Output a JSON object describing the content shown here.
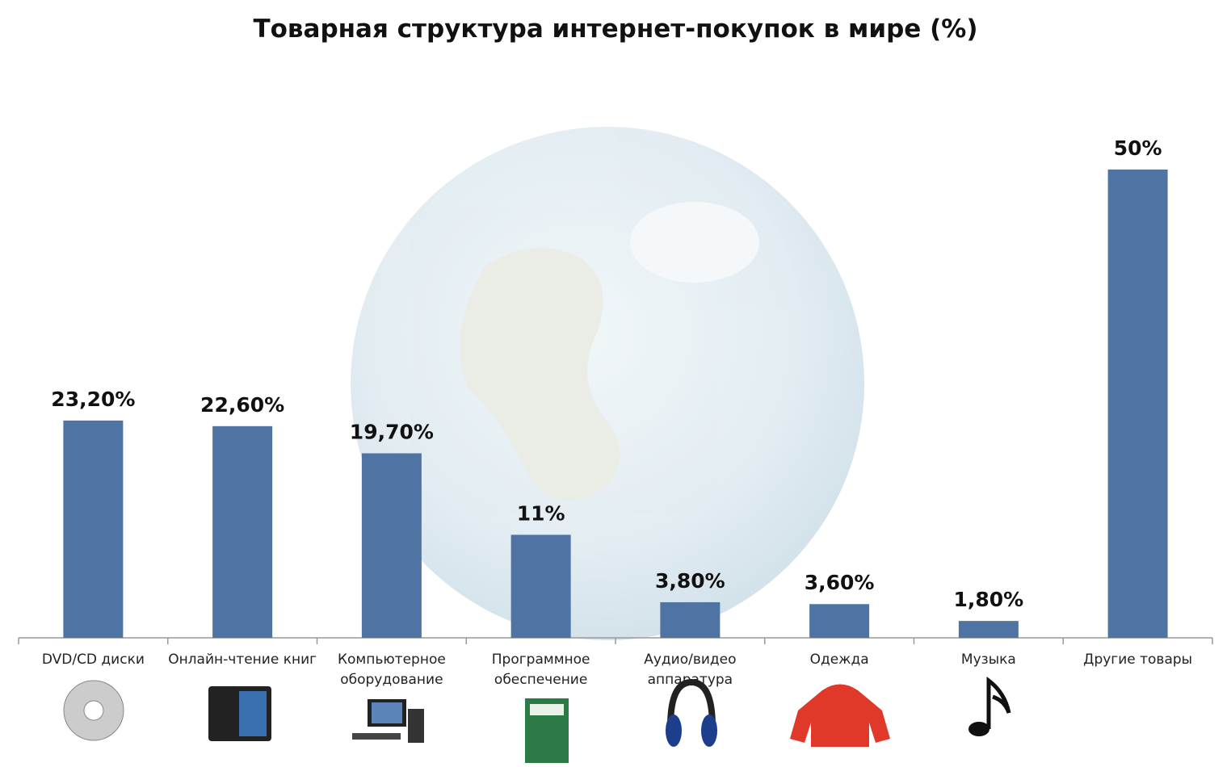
{
  "chart_data": {
    "type": "bar",
    "title": "Товарная структура интернет-покупок в мире (%)",
    "categories": [
      "DVD/CD диски",
      "Онлайн-чтение книг",
      "Компьютерное\nоборудование",
      "Программное\nобеспечение",
      "Аудио/видео\nаппаратура",
      "Одежда",
      "Музыка",
      "Другие товары"
    ],
    "values": [
      23.2,
      22.6,
      19.7,
      11,
      3.8,
      3.6,
      1.8,
      50
    ],
    "value_labels": [
      "23,20%",
      "22,60%",
      "19,70%",
      "11%",
      "3,80%",
      "3,60%",
      "1,80%",
      "50%"
    ],
    "color": "#4f74a3",
    "ylim": [
      0,
      50
    ]
  }
}
